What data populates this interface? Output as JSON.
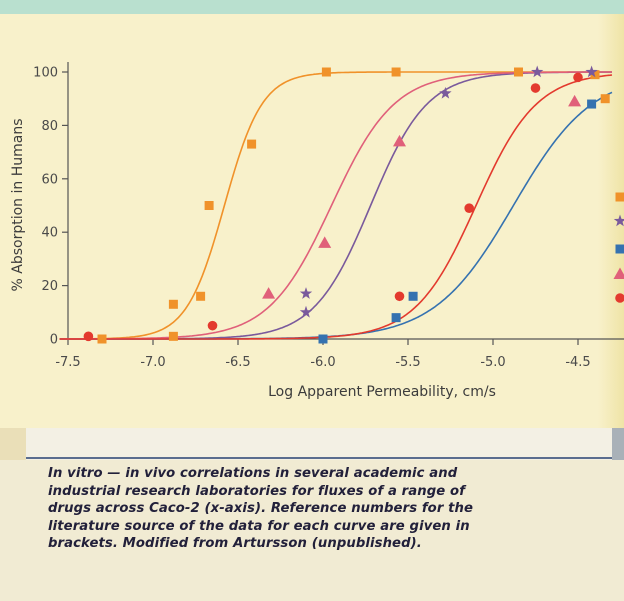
{
  "chart_data": {
    "type": "scatter",
    "xlabel": "Log Apparent Permeability, cm/s",
    "ylabel": "% Absorption in Humans",
    "xlim": [
      -7.5,
      -4.3
    ],
    "ylim": [
      0,
      100
    ],
    "x_ticks": [
      "-7.5",
      "-7.0",
      "-6.5",
      "-6.0",
      "-5.5",
      "-5.0",
      "-4.5"
    ],
    "x_tick_values": [
      -7.5,
      -7.0,
      -6.5,
      -6.0,
      -5.5,
      -5.0,
      -4.5
    ],
    "y_ticks": [
      "0",
      "20",
      "40",
      "60",
      "80",
      "100"
    ],
    "y_tick_values": [
      0,
      20,
      40,
      60,
      80,
      100
    ],
    "grid": false,
    "legend": "right edge (cropped)",
    "series": [
      {
        "marker": "square",
        "color": "#f0922a",
        "points": [
          [
            -7.3,
            0
          ],
          [
            -6.88,
            1
          ],
          [
            -6.88,
            13
          ],
          [
            -6.72,
            16
          ],
          [
            -6.67,
            50
          ],
          [
            -6.42,
            73
          ],
          [
            -5.98,
            100
          ],
          [
            -5.57,
            100
          ],
          [
            -4.85,
            100
          ],
          [
            -4.4,
            99
          ],
          [
            -4.34,
            90
          ]
        ],
        "fit": {
          "mid": -6.58,
          "slope": 9.0
        }
      },
      {
        "marker": "star",
        "color": "#7a5a9c",
        "points": [
          [
            -6.1,
            10
          ],
          [
            -6.1,
            17
          ],
          [
            -5.28,
            92
          ],
          [
            -4.74,
            100
          ],
          [
            -4.42,
            100
          ]
        ],
        "fit": {
          "mid": -5.72,
          "slope": 6.0
        }
      },
      {
        "marker": "square",
        "color": "#3572b0",
        "points": [
          [
            -6.0,
            0
          ],
          [
            -5.57,
            8
          ],
          [
            -5.47,
            16
          ],
          [
            -4.42,
            88
          ]
        ],
        "fit": {
          "mid": -4.88,
          "slope": 4.3
        }
      },
      {
        "marker": "triangle",
        "color": "#e0607a",
        "points": [
          [
            -6.32,
            17
          ],
          [
            -5.99,
            36
          ],
          [
            -5.55,
            74
          ],
          [
            -4.52,
            89
          ]
        ],
        "fit": {
          "mid": -5.95,
          "slope": 5.4
        }
      },
      {
        "marker": "circle",
        "color": "#e33a2e",
        "points": [
          [
            -7.38,
            1
          ],
          [
            -6.65,
            5
          ],
          [
            -5.55,
            16
          ],
          [
            -5.14,
            49
          ],
          [
            -4.75,
            94
          ],
          [
            -4.5,
            98
          ]
        ],
        "fit": {
          "mid": -5.1,
          "slope": 5.6
        }
      }
    ]
  },
  "caption": {
    "lines": [
      "In vitro — in vivo correlations in several academic and",
      "industrial research laboratories for fluxes of a range of",
      "drugs across Caco-2 (x-axis). Reference numbers for the",
      "literature source of the data for each curve are given in",
      "brackets. Modified from Artursson (unpublished)."
    ]
  }
}
